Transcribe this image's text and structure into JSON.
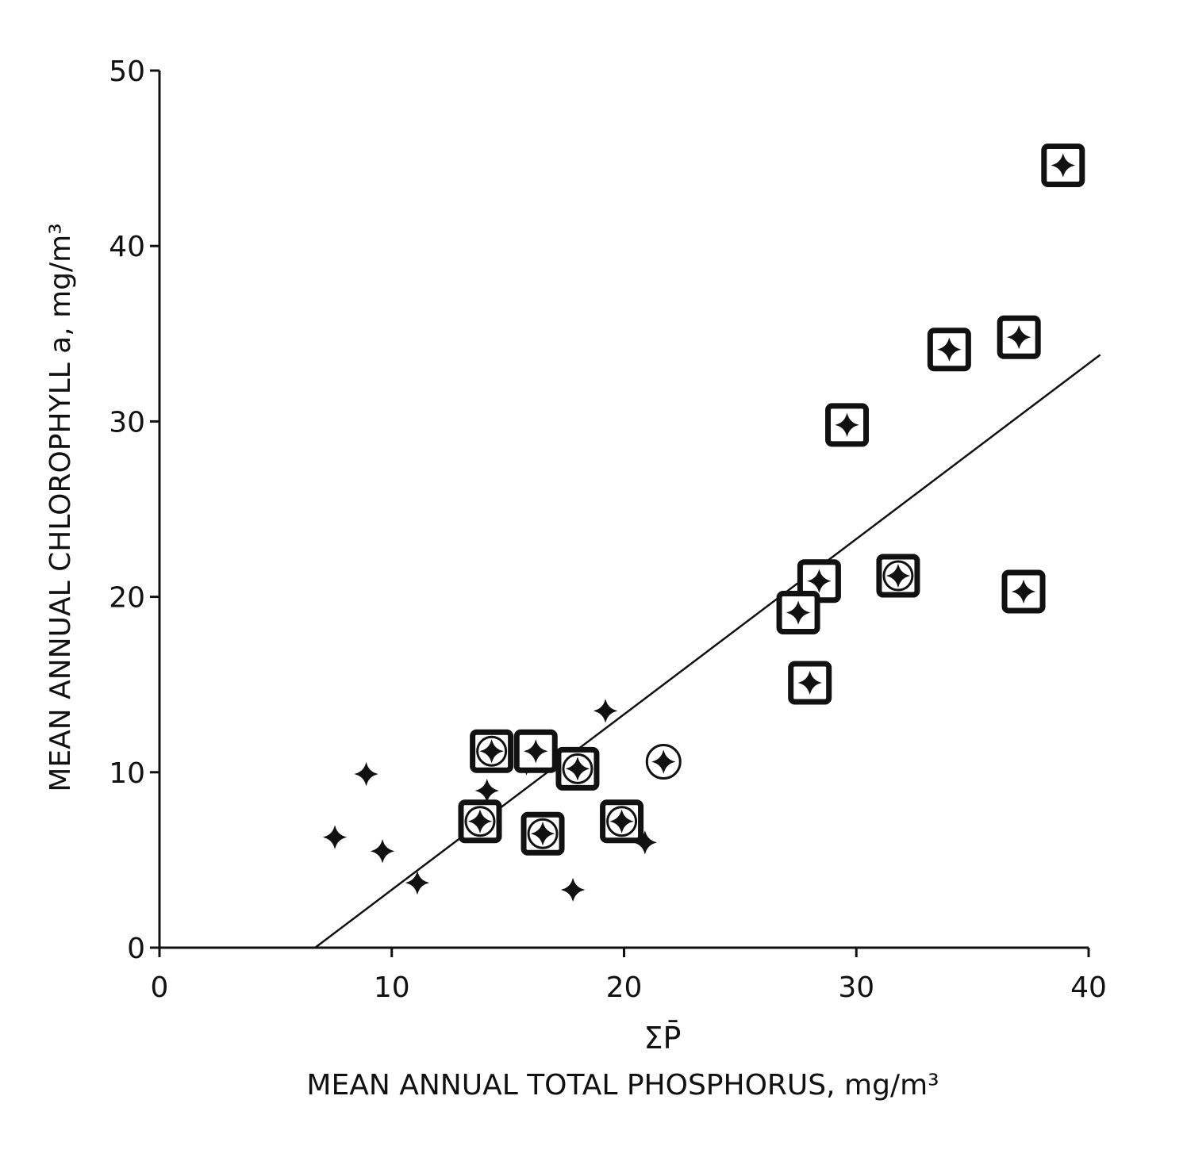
{
  "chart_data": {
    "type": "scatter",
    "title": "",
    "xlabel_symbol": "ΣP̄",
    "xlabel": "MEAN ANNUAL TOTAL PHOSPHORUS, mg/m³",
    "ylabel": "MEAN ANNUAL CHLOROPHYLL a, mg/m³",
    "xlim": [
      0,
      40
    ],
    "ylim": [
      0,
      50
    ],
    "xticks": [
      0,
      10,
      20,
      30,
      40
    ],
    "yticks": [
      0,
      10,
      20,
      30,
      40,
      50
    ],
    "grid": false,
    "series": [
      {
        "name": "plain",
        "marker": "cross",
        "points": [
          [
            7.55,
            6.3
          ],
          [
            8.9,
            9.9
          ],
          [
            9.6,
            5.5
          ],
          [
            11.1,
            3.7
          ],
          [
            14.1,
            8.95
          ],
          [
            15.8,
            10.5
          ],
          [
            17.8,
            3.3
          ],
          [
            19.2,
            13.5
          ],
          [
            20.9,
            6.0
          ]
        ]
      },
      {
        "name": "boxed",
        "marker": "boxed-cross",
        "points": [
          [
            38.9,
            44.6
          ],
          [
            37.0,
            34.8
          ],
          [
            34.0,
            34.1
          ],
          [
            29.6,
            29.8
          ],
          [
            28.4,
            20.9
          ],
          [
            27.5,
            19.1
          ],
          [
            28.0,
            15.1
          ],
          [
            37.2,
            20.3
          ],
          [
            16.2,
            11.2
          ]
        ]
      },
      {
        "name": "boxed-circled",
        "marker": "boxed-circled-cross",
        "points": [
          [
            14.3,
            11.2
          ],
          [
            13.8,
            7.2
          ],
          [
            16.5,
            6.5
          ],
          [
            18.0,
            10.2
          ],
          [
            19.9,
            7.2
          ],
          [
            31.8,
            21.2
          ]
        ]
      },
      {
        "name": "circled",
        "marker": "circled-cross",
        "points": [
          [
            21.7,
            10.6
          ]
        ]
      }
    ],
    "regression_line": {
      "slope": 1.0,
      "intercept": -6.7,
      "x_range": [
        6.7,
        40.5
      ]
    }
  }
}
